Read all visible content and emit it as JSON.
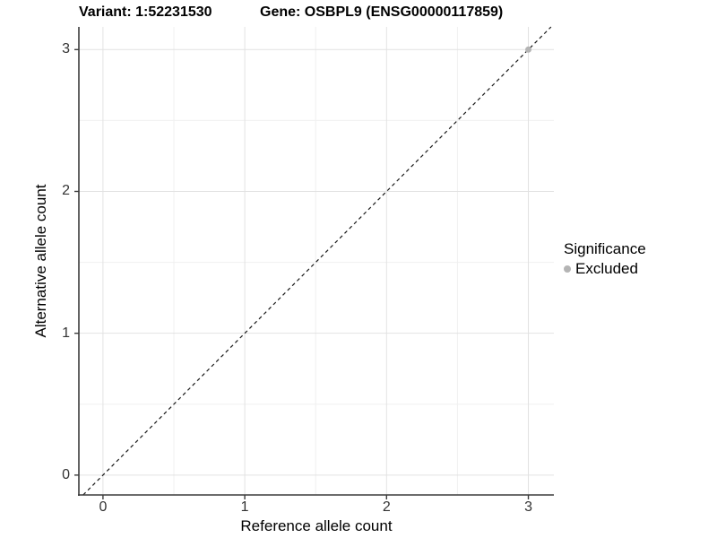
{
  "titles": {
    "variant": "Variant: 1:52231530",
    "gene": "Gene: OSBPL9 (ENSG00000117859)"
  },
  "chart_data": {
    "type": "scatter",
    "title_left": "Variant: 1:52231530",
    "title_right": "Gene: OSBPL9 (ENSG00000117859)",
    "xlabel": "Reference allele count",
    "ylabel": "Alternative allele count",
    "xlim": [
      -0.17,
      3.18
    ],
    "ylim": [
      -0.14,
      3.16
    ],
    "grid": true,
    "xticks": {
      "major": [
        0,
        1,
        2,
        3
      ],
      "labels": [
        "0",
        "1",
        "2",
        "3"
      ],
      "minor": [
        0.5,
        1.5,
        2.5
      ]
    },
    "yticks": {
      "major": [
        0,
        1,
        2,
        3
      ],
      "labels": [
        "0",
        "1",
        "2",
        "3"
      ],
      "minor": [
        0.5,
        1.5,
        2.5
      ]
    },
    "series": [
      {
        "name": "Excluded",
        "color": "#b4b4b4",
        "points": [
          {
            "x": 3,
            "y": 3
          }
        ]
      }
    ],
    "reference_line": {
      "type": "identity",
      "style": "dashed",
      "color": "#1a1a1a"
    },
    "legend": {
      "title": "Significance",
      "position": "right",
      "entries": [
        {
          "label": "Excluded",
          "color": "#b4b4b4"
        }
      ]
    }
  },
  "style_colors": {
    "grid_major": "#e2e2e2",
    "grid_minor": "#f0f0f0",
    "axis_line": "#3c3c3c",
    "tick_mark": "#3c3c3c",
    "panel_background": "#ffffff"
  }
}
